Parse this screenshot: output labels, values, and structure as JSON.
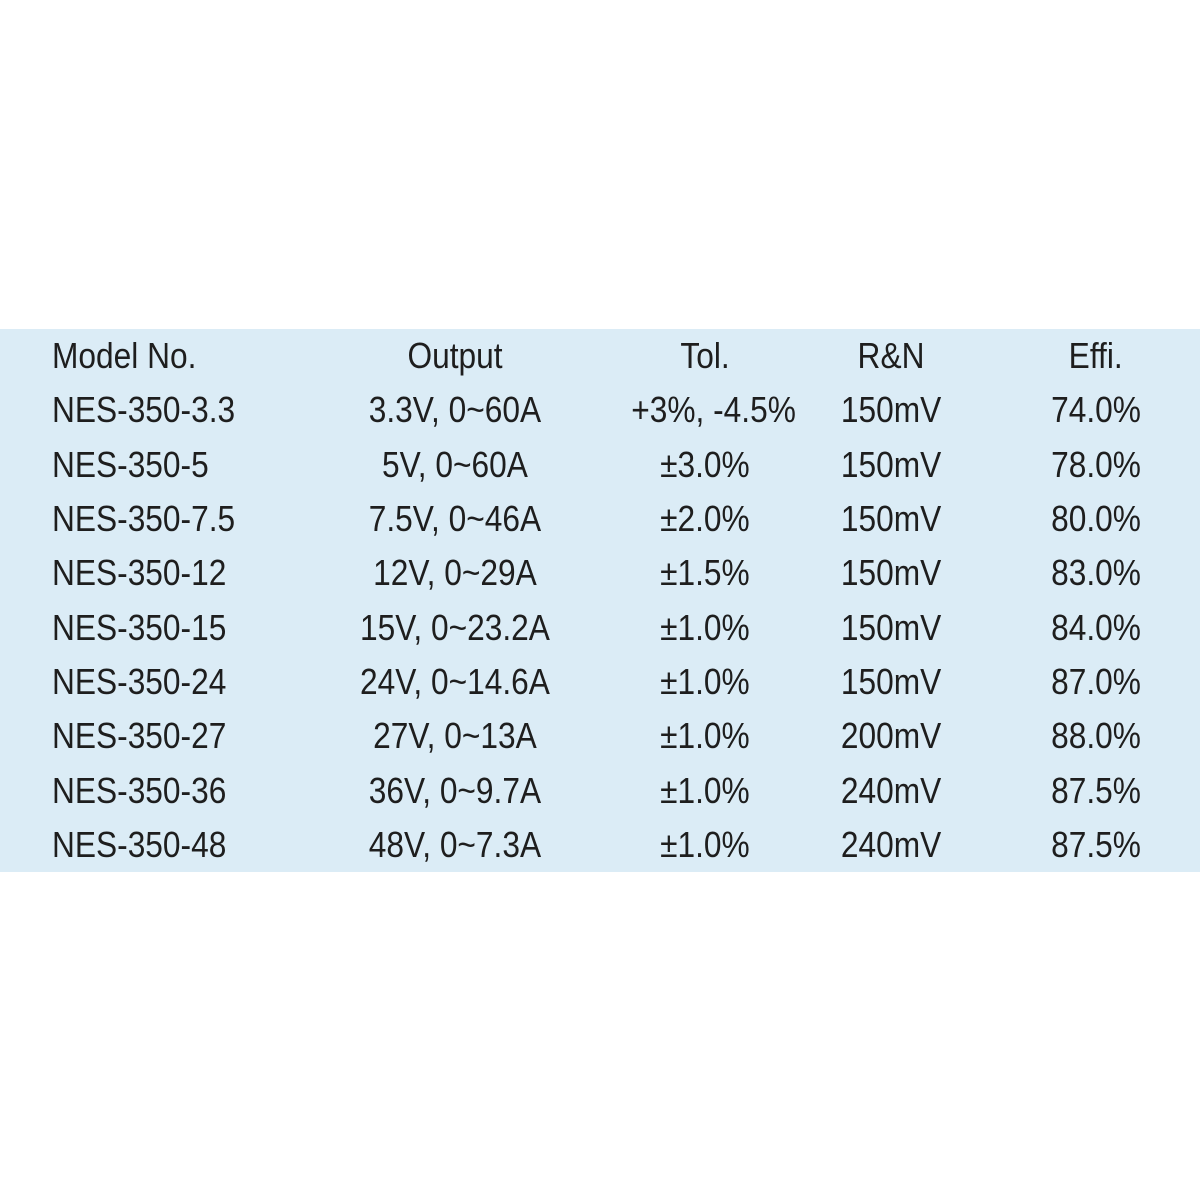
{
  "colors": {
    "page_background": "#ffffff",
    "table_background": "#dbecf6",
    "text": "#1e1e1e"
  },
  "table": {
    "columns": [
      {
        "key": "model",
        "label": "Model No."
      },
      {
        "key": "output",
        "label": "Output"
      },
      {
        "key": "tol",
        "label": "Tol."
      },
      {
        "key": "rn",
        "label": "R&N"
      },
      {
        "key": "effi",
        "label": "Effi."
      }
    ],
    "rows": [
      {
        "model": "NES-350-3.3",
        "output": "3.3V, 0~60A",
        "tol": "+3%, -4.5%",
        "rn": "150mV",
        "effi": "74.0%"
      },
      {
        "model": "NES-350-5",
        "output": "5V, 0~60A",
        "tol": "±3.0%",
        "rn": "150mV",
        "effi": "78.0%"
      },
      {
        "model": "NES-350-7.5",
        "output": "7.5V, 0~46A",
        "tol": "±2.0%",
        "rn": "150mV",
        "effi": "80.0%"
      },
      {
        "model": "NES-350-12",
        "output": "12V, 0~29A",
        "tol": "±1.5%",
        "rn": "150mV",
        "effi": "83.0%"
      },
      {
        "model": "NES-350-15",
        "output": "15V, 0~23.2A",
        "tol": "±1.0%",
        "rn": "150mV",
        "effi": "84.0%"
      },
      {
        "model": "NES-350-24",
        "output": "24V, 0~14.6A",
        "tol": "±1.0%",
        "rn": "150mV",
        "effi": "87.0%"
      },
      {
        "model": "NES-350-27",
        "output": "27V, 0~13A",
        "tol": "±1.0%",
        "rn": "200mV",
        "effi": "88.0%"
      },
      {
        "model": "NES-350-36",
        "output": "36V, 0~9.7A",
        "tol": "±1.0%",
        "rn": "240mV",
        "effi": "87.5%"
      },
      {
        "model": "NES-350-48",
        "output": "48V, 0~7.3A",
        "tol": "±1.0%",
        "rn": "240mV",
        "effi": "87.5%"
      }
    ]
  }
}
